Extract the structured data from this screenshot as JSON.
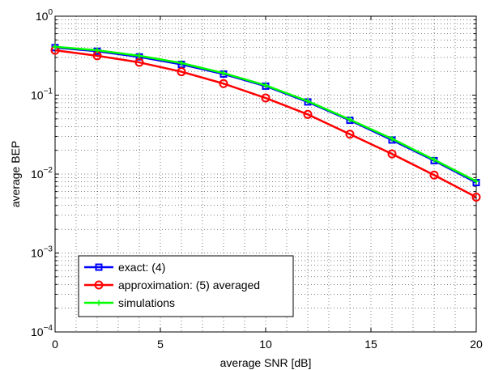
{
  "chart_data": {
    "type": "line",
    "xlabel": "average SNR [dB]",
    "ylabel": "average BEP",
    "xlim": [
      0,
      20
    ],
    "ylim": [
      0.0001,
      1
    ],
    "yscale": "log",
    "grid": true,
    "legend_position": "bottom-left",
    "x_ticks": [
      0,
      5,
      10,
      15,
      20
    ],
    "y_ticks": [
      {
        "base": "10",
        "exp": "0",
        "value": 1
      },
      {
        "base": "10",
        "exp": "−1",
        "value": 0.1
      },
      {
        "base": "10",
        "exp": "−2",
        "value": 0.01
      },
      {
        "base": "10",
        "exp": "−3",
        "value": 0.001
      },
      {
        "base": "10",
        "exp": "−4",
        "value": 0.0001
      }
    ],
    "x": [
      0,
      2,
      4,
      6,
      8,
      10,
      12,
      14,
      16,
      18,
      20
    ],
    "series": [
      {
        "name": "exact: (4)",
        "color": "#0000ff",
        "marker": "square",
        "values": [
          0.4,
          0.36,
          0.305,
          0.245,
          0.185,
          0.13,
          0.082,
          0.048,
          0.027,
          0.0148,
          0.0078
        ]
      },
      {
        "name": "approximation: (5) averaged",
        "color": "#ff0000",
        "marker": "circle",
        "values": [
          0.37,
          0.315,
          0.26,
          0.198,
          0.14,
          0.092,
          0.057,
          0.032,
          0.018,
          0.0097,
          0.0051
        ]
      },
      {
        "name": "simulations",
        "color": "#00ff00",
        "marker": "plus",
        "values": [
          0.41,
          0.37,
          0.315,
          0.255,
          0.19,
          0.133,
          0.084,
          0.049,
          0.028,
          0.0152,
          0.0081
        ]
      }
    ]
  }
}
